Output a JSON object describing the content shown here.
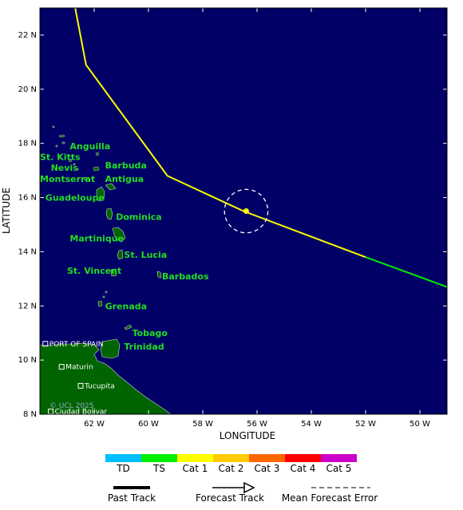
{
  "map": {
    "bounds": {
      "lon_min": -64,
      "lon_max": -49,
      "lat_min": 8,
      "lat_max": 23
    },
    "ocean_color": "#000066",
    "land_color": "#006400",
    "x_ticks": [
      {
        "lon": -62,
        "label": "62 W"
      },
      {
        "lon": -60,
        "label": "60 W"
      },
      {
        "lon": -58,
        "label": "58 W"
      },
      {
        "lon": -56,
        "label": "56 W"
      },
      {
        "lon": -54,
        "label": "54 W"
      },
      {
        "lon": -52,
        "label": "52 W"
      },
      {
        "lon": -50,
        "label": "50 W"
      }
    ],
    "y_ticks": [
      {
        "lat": 22,
        "label": "22 N"
      },
      {
        "lat": 20,
        "label": "20 N"
      },
      {
        "lat": 18,
        "label": "18 N"
      },
      {
        "lat": 16,
        "label": "16 N"
      },
      {
        "lat": 14,
        "label": "14 N"
      },
      {
        "lat": 12,
        "label": "12 N"
      },
      {
        "lat": 10,
        "label": "10 N"
      },
      {
        "lat": 8,
        "label": "8 N"
      }
    ],
    "xlabel": "LONGITUDE",
    "ylabel": "LATITUDE",
    "islands": [
      {
        "name": "Anguilla",
        "lon": -62.9,
        "lat": 17.9
      },
      {
        "name": "Barbuda",
        "lon": -61.6,
        "lat": 17.2
      },
      {
        "name": "St. Kitts",
        "lon": -64.0,
        "lat": 17.5
      },
      {
        "name": "Nevis",
        "lon": -63.6,
        "lat": 17.1
      },
      {
        "name": "Antigua",
        "lon": -61.6,
        "lat": 16.7
      },
      {
        "name": "Montserrat",
        "lon": -64.0,
        "lat": 16.7
      },
      {
        "name": "Guadeloupe",
        "lon": -63.8,
        "lat": 16.0
      },
      {
        "name": "Dominica",
        "lon": -61.2,
        "lat": 15.3
      },
      {
        "name": "Martinique",
        "lon": -62.9,
        "lat": 14.5
      },
      {
        "name": "St. Lucia",
        "lon": -60.9,
        "lat": 13.9
      },
      {
        "name": "St. Vincent",
        "lon": -63.0,
        "lat": 13.3
      },
      {
        "name": "Barbados",
        "lon": -59.5,
        "lat": 13.1
      },
      {
        "name": "Grenada",
        "lon": -61.6,
        "lat": 12.0
      },
      {
        "name": "Tobago",
        "lon": -60.6,
        "lat": 11.0
      },
      {
        "name": "Trinidad",
        "lon": -60.9,
        "lat": 10.5
      }
    ],
    "cities": [
      {
        "name": "PORT OF SPAIN",
        "lon": -63.8,
        "lat": 10.6
      },
      {
        "name": "Maturin",
        "lon": -63.2,
        "lat": 9.75
      },
      {
        "name": "Tucupita",
        "lon": -62.5,
        "lat": 9.05
      },
      {
        "name": "Ciudad Bolivar",
        "lon": -63.6,
        "lat": 8.1
      }
    ],
    "copyright": "© UCL 2025"
  },
  "track": {
    "past": [
      {
        "lon": -49.0,
        "lat": 12.7
      },
      {
        "lon": -52.0,
        "lat": 13.8
      }
    ],
    "forecast": [
      {
        "lon": -52.0,
        "lat": 13.8
      },
      {
        "lon": -56.5,
        "lat": 15.5
      },
      {
        "lon": -59.3,
        "lat": 16.8
      },
      {
        "lon": -62.3,
        "lat": 20.9
      },
      {
        "lon": -62.7,
        "lat": 23.0
      }
    ],
    "current_position": {
      "lon": -56.4,
      "lat": 15.5
    },
    "error_radius_deg": 0.8
  },
  "legend": {
    "categories": [
      {
        "label": "TD",
        "color": "#00bfff"
      },
      {
        "label": "TS",
        "color": "#00ee00"
      },
      {
        "label": "Cat 1",
        "color": "#ffff00"
      },
      {
        "label": "Cat 2",
        "color": "#ffcc00"
      },
      {
        "label": "Cat 3",
        "color": "#ff6600"
      },
      {
        "label": "Cat 4",
        "color": "#ff0000"
      },
      {
        "label": "Cat 5",
        "color": "#cc00cc"
      }
    ],
    "past_track": "Past Track",
    "forecast_track": "Forecast Track",
    "mean_error": "Mean Forecast Error"
  }
}
